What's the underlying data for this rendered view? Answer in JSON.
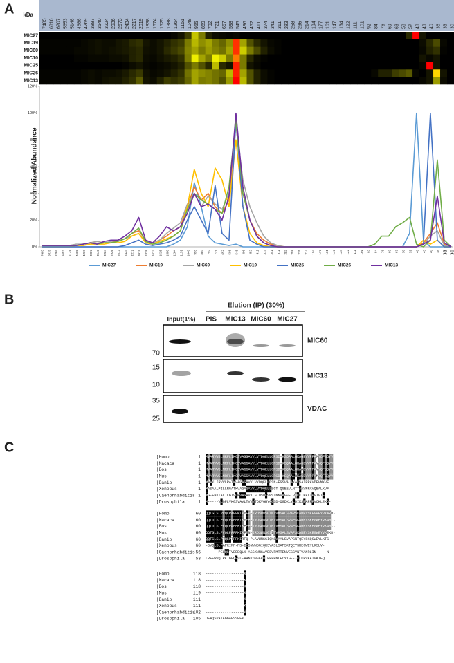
{
  "chart_data": [
    {
      "type": "heatmap",
      "axis_label": "kDa"
    },
    {
      "type": "line",
      "ylabel": "Normalized Abundance",
      "categories": [
        "7485",
        "6816",
        "6207",
        "5653",
        "5148",
        "4688",
        "4269",
        "3887",
        "3540",
        "3224",
        "2936",
        "2673",
        "2434",
        "2217",
        "2019",
        "1838",
        "1674",
        "1525",
        "1388",
        "1264",
        "1151",
        "1048",
        "955",
        "869",
        "792",
        "721",
        "657",
        "598",
        "545",
        "496",
        "452",
        "411",
        "374",
        "341",
        "311",
        "283",
        "258",
        "235",
        "214",
        "194",
        "177",
        "161",
        "147",
        "134",
        "122",
        "111",
        "101",
        "92",
        "84",
        "76",
        "69",
        "63",
        "58",
        "52",
        "48",
        "43",
        "40",
        "36",
        "33",
        "30"
      ],
      "ylim": [
        0,
        120
      ],
      "yticks": [
        {
          "value": 0,
          "label": "0%"
        },
        {
          "value": 20,
          "label": "20%"
        },
        {
          "value": 40,
          "label": "40%"
        },
        {
          "value": 60,
          "label": "60%"
        },
        {
          "value": 80,
          "label": "80%"
        },
        {
          "value": 100,
          "label": "100%"
        },
        {
          "value": 120,
          "label": "120%"
        }
      ],
      "grid": false,
      "legend": "bottom",
      "series": [
        {
          "name": "MIC27",
          "color": "#5b9bd5",
          "values": [
            0,
            0,
            0,
            0,
            0,
            0,
            0,
            0,
            0,
            0,
            0,
            0,
            0,
            0,
            0,
            0,
            0,
            0,
            0,
            2,
            5,
            15,
            48,
            30,
            8,
            3,
            2,
            1,
            2,
            0,
            0,
            0,
            0,
            0,
            0,
            0,
            0,
            0,
            0,
            0,
            0,
            0,
            0,
            0,
            0,
            0,
            0,
            0,
            0,
            0,
            0,
            0,
            0,
            10,
            100,
            5,
            0,
            0,
            0,
            0
          ]
        },
        {
          "name": "MIC19",
          "color": "#ed7d31",
          "values": [
            1,
            1,
            1,
            1,
            1,
            1,
            2,
            3,
            4,
            3,
            3,
            5,
            6,
            10,
            12,
            5,
            3,
            5,
            8,
            12,
            15,
            30,
            45,
            35,
            40,
            30,
            25,
            35,
            92,
            40,
            20,
            10,
            5,
            2,
            1,
            0,
            0,
            0,
            0,
            0,
            0,
            0,
            0,
            0,
            0,
            0,
            0,
            0,
            0,
            0,
            0,
            0,
            0,
            0,
            0,
            3,
            10,
            18,
            2,
            0
          ]
        },
        {
          "name": "MIC60",
          "color": "#a5a5a5",
          "values": [
            1,
            1,
            1,
            1,
            1,
            2,
            2,
            3,
            4,
            3,
            4,
            5,
            6,
            8,
            10,
            4,
            3,
            5,
            10,
            14,
            18,
            32,
            40,
            30,
            38,
            32,
            28,
            40,
            92,
            50,
            30,
            18,
            8,
            3,
            1,
            0,
            0,
            0,
            0,
            0,
            0,
            0,
            0,
            0,
            0,
            0,
            0,
            0,
            0,
            0,
            0,
            0,
            0,
            0,
            0,
            2,
            8,
            12,
            1,
            0
          ]
        },
        {
          "name": "MIC10",
          "color": "#ffc000",
          "values": [
            0,
            0,
            0,
            0,
            0,
            1,
            1,
            2,
            2,
            2,
            3,
            3,
            4,
            8,
            10,
            3,
            2,
            4,
            6,
            8,
            12,
            30,
            58,
            40,
            30,
            59,
            50,
            30,
            80,
            30,
            10,
            3,
            1,
            0,
            0,
            0,
            0,
            0,
            0,
            0,
            0,
            0,
            0,
            0,
            0,
            0,
            0,
            0,
            0,
            0,
            0,
            0,
            0,
            0,
            0,
            5,
            2,
            5,
            0,
            0
          ]
        },
        {
          "name": "MIC25",
          "color": "#4472c4",
          "values": [
            0,
            0,
            0,
            0,
            0,
            0,
            0,
            0,
            0,
            0,
            0,
            0,
            1,
            3,
            5,
            2,
            1,
            2,
            3,
            5,
            8,
            20,
            30,
            20,
            10,
            46,
            10,
            5,
            95,
            30,
            5,
            2,
            0,
            0,
            0,
            0,
            0,
            0,
            0,
            0,
            0,
            0,
            0,
            0,
            0,
            0,
            0,
            0,
            0,
            0,
            0,
            0,
            0,
            0,
            0,
            2,
            100,
            5,
            0,
            0
          ]
        },
        {
          "name": "MIC26",
          "color": "#70ad47",
          "values": [
            1,
            1,
            1,
            1,
            1,
            1,
            2,
            3,
            2,
            3,
            3,
            4,
            6,
            10,
            14,
            4,
            2,
            3,
            5,
            8,
            12,
            28,
            40,
            35,
            32,
            28,
            25,
            45,
            95,
            40,
            20,
            8,
            3,
            1,
            0,
            0,
            0,
            0,
            0,
            0,
            0,
            0,
            0,
            0,
            0,
            0,
            0,
            0,
            2,
            8,
            8,
            15,
            18,
            22,
            2,
            0,
            5,
            65,
            5,
            0
          ]
        },
        {
          "name": "MIC13",
          "color": "#7030a0",
          "values": [
            1,
            1,
            1,
            1,
            1,
            1,
            2,
            3,
            2,
            4,
            5,
            5,
            8,
            12,
            22,
            5,
            3,
            8,
            15,
            12,
            15,
            25,
            40,
            30,
            32,
            28,
            20,
            38,
            100,
            45,
            20,
            8,
            3,
            1,
            0,
            0,
            0,
            0,
            0,
            0,
            0,
            0,
            0,
            0,
            0,
            0,
            0,
            0,
            0,
            0,
            0,
            0,
            0,
            0,
            0,
            2,
            5,
            38,
            3,
            0
          ]
        }
      ]
    }
  ],
  "panel_labels": [
    "A",
    "B",
    "C"
  ],
  "blot": {
    "elution_label": "Elution (IP) (30%)",
    "lanes": [
      "Input(1%)",
      "PIS",
      "MIC13",
      "MIC60",
      "MIC27"
    ],
    "panels": [
      {
        "antibody": "MIC60",
        "markers": [
          70
        ]
      },
      {
        "antibody": "MIC13",
        "markers": [
          15,
          10
        ]
      },
      {
        "antibody": "VDAC",
        "markers": [
          35,
          25
        ]
      }
    ]
  },
  "alignment": {
    "blocks": [
      {
        "rows": [
          {
            "species": "[Homo",
            "start": 1,
            "sequence": "MVARVWSLMRFLIKGSVAGGAVYLVYDQELLGPSD-KSQAALQKAGEVVPPAMYQFSQYV"
          },
          {
            "species": "[Macaca",
            "start": 1,
            "sequence": "MVARVWSLMRFLIKGSVAGGAVYLVYDQELLGPSD-KSQAALQKAGEVVPPAVYQFSQYV"
          },
          {
            "species": "[Bos",
            "start": 1,
            "sequence": "MVARVWSLMRFLIKGSVAGGAVYLVYDQELLGPSD-KSQAALQKAAEVVPPAVYQFSQYV"
          },
          {
            "species": "[Mus",
            "start": 1,
            "sequence": "MVARVWSLMRFLIKGSVAGGAVYLVYDQELLGPSD-KSQAALRKAGEVVPPAMYQFSQYV"
          },
          {
            "species": "[Danio",
            "start": 1,
            "sequence": "MAAKLIRVVLPATKVAGAGAVYLVYDQELLGSN-EGSVALAKAKSAIPPAVDEVMKVF"
          },
          {
            "species": "[Xenopus",
            "start": 1,
            "sequence": "MASAALPILLRGATKVAGAGAVYLVYDQELLSGT-QGEEVLNTTAAVPPAVQEALKVF"
          },
          {
            "species": "[Caenorhabditis",
            "start": 1,
            "sequence": "MG-FNKTALILGTVGKVAGAVKLSLDSDESWSTNNVKGSELVQKKIKFLTPGTVTF"
          },
          {
            "species": "[Drosophila",
            "start": 1,
            "sequence": "M-----VLGFLVKGSVAVLTVYYTQKVGHYGGSD-QGDKLYLDIKSEAPRPVQKLEKQ-"
          }
        ]
      },
      {
        "rows": [
          {
            "species": "[Homo",
            "start": 60,
            "sequence": "QQTGLSLPVQLPAPPKIKYEP-IRDSWNSGIMTVMSALSVAPSKAREYSKEGWEYVKARD-"
          },
          {
            "species": "[Macaca",
            "start": 60,
            "sequence": "QQTGLSLPVQLPAPPKIKYEP-IRDSWNSGIMTVMSALSVAPSKAREYSKEGWEYVKART-"
          },
          {
            "species": "[Bos",
            "start": 60,
            "sequence": "QQTGLSLPVQLPAPPKIKPEP-IRDSWNSGIMTVMSALSVAPSKAREYSKEGWEYVKAR--"
          },
          {
            "species": "[Mus",
            "start": 60,
            "sequence": "QQTGLSLPVQLPAPPKIKFEN-IRDSWNSGIITVMSALSVAPSKAREYSKEGWEYVKEKD-"
          },
          {
            "species": "[Danio",
            "start": 60,
            "sequence": "QQTGLSLPTQLPTPPKIRFQ-PLAVWNSGIQKSVAALSVAPSNTQEYSKQGWEYLKTS-"
          },
          {
            "species": "[Xenopus",
            "start": 60,
            "sequence": "-GVQLSLPAPKIRF-PS-IESNWNSGIQKSVASLSAPSKTQEYSKEGWEYLKSLV-"
          },
          {
            "species": "[Caenorhabditis",
            "start": 56,
            "sequence": "------PELQLTVEDEQLK-AGGKWNSAVDEVFMTTENVESSVNTVANRLIN-----N-"
          },
          {
            "species": "[Drosophila",
            "start": 53,
            "sequence": "LPFEWVQLPKTGEQPSL-AHNYDNSEKNTFRFHNLECYIG---KLKRVKAIVKTFQ"
          }
        ]
      },
      {
        "rows": [
          {
            "species": "[Homo",
            "start": 118,
            "sequence": "------------------K"
          },
          {
            "species": "[Macaca",
            "start": 118,
            "sequence": "------------------K"
          },
          {
            "species": "[Bos",
            "start": 118,
            "sequence": "------------------K"
          },
          {
            "species": "[Mus",
            "start": 119,
            "sequence": "------------------K"
          },
          {
            "species": "[Danio",
            "start": 111,
            "sequence": "------------------K"
          },
          {
            "species": "[Xenopus",
            "start": 111,
            "sequence": "------------------K"
          },
          {
            "species": "[Caenorhabditis",
            "start": 102,
            "sequence": "------------------K"
          },
          {
            "species": "[Drosophila",
            "start": 105,
            "sequence": "DFAQSPATAGGAESSPEK"
          }
        ]
      }
    ]
  }
}
